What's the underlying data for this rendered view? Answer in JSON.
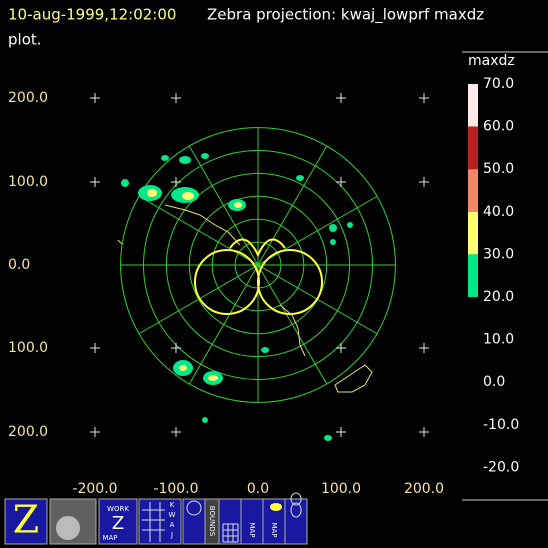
{
  "header": {
    "timestamp": "10-aug-1999,12:02:00",
    "title": "Zebra projection: kwaj_lowprf maxdz",
    "title_cont": "plot."
  },
  "y_labels": [
    "200.0",
    "100.0",
    "0.0",
    "100.0",
    "200.0"
  ],
  "x_labels": [
    "-200.0",
    "-100.0",
    "0.0",
    "100.0",
    "200.0"
  ],
  "colorbar": {
    "field": "maxdz",
    "labels": [
      "70.0",
      "60.0",
      "50.0",
      "40.0",
      "30.0",
      "20.0",
      "10.0",
      "0.0",
      "-10.0",
      "-20.0"
    ],
    "colors": [
      "#ffe8e8",
      "#b82020",
      "#f08868",
      "#ffff70",
      "#00e888"
    ]
  },
  "icons": {
    "main": "Z",
    "work": [
      "WORK",
      "Z",
      "MAP"
    ],
    "kwaj": [
      "K",
      "W",
      "A",
      "J"
    ],
    "bounds": "BOUNDS",
    "map1": "MAP",
    "map2": "MAP"
  }
}
